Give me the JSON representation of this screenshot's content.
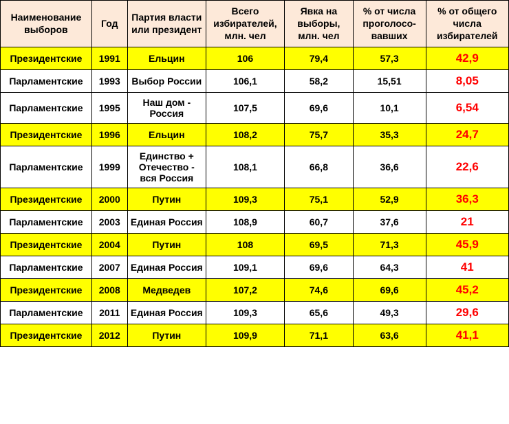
{
  "table": {
    "headers": [
      "Наименование выборов",
      "Год",
      "Партия власти или президент",
      "Всего избирателей, млн. чел",
      "Явка на выборы, млн. чел",
      "% от числа проголосо-вавших",
      "% от общего числа избирателей"
    ],
    "columns": [
      {
        "class": "col-name"
      },
      {
        "class": "col-year"
      },
      {
        "class": "col-party"
      },
      {
        "class": "col-voters"
      },
      {
        "class": "col-turnout"
      },
      {
        "class": "col-pct-voted"
      },
      {
        "class": "col-pct-total"
      }
    ],
    "rows": [
      {
        "highlight": true,
        "cells": [
          "Президентские",
          "1991",
          "Ельцин",
          "106",
          "79,4",
          "57,3",
          "42,9"
        ]
      },
      {
        "highlight": false,
        "cells": [
          "Парламентские",
          "1993",
          "Выбор России",
          "106,1",
          "58,2",
          "15,51",
          "8,05"
        ]
      },
      {
        "highlight": false,
        "cells": [
          "Парламентские",
          "1995",
          "Наш дом - Россия",
          "107,5",
          "69,6",
          "10,1",
          "6,54"
        ]
      },
      {
        "highlight": true,
        "cells": [
          "Президентские",
          "1996",
          "Ельцин",
          "108,2",
          "75,7",
          "35,3",
          "24,7"
        ]
      },
      {
        "highlight": false,
        "cells": [
          "Парламентские",
          "1999",
          "Единство + Отечество - вся Россия",
          "108,1",
          "66,8",
          "36,6",
          "22,6"
        ]
      },
      {
        "highlight": true,
        "cells": [
          "Президентские",
          "2000",
          "Путин",
          "109,3",
          "75,1",
          "52,9",
          "36,3"
        ]
      },
      {
        "highlight": false,
        "cells": [
          "Парламентские",
          "2003",
          "Единая Россия",
          "108,9",
          "60,7",
          "37,6",
          "21"
        ]
      },
      {
        "highlight": true,
        "cells": [
          "Президентские",
          "2004",
          "Путин",
          "108",
          "69,5",
          "71,3",
          "45,9"
        ]
      },
      {
        "highlight": false,
        "cells": [
          "Парламентские",
          "2007",
          "Единая Россия",
          "109,1",
          "69,6",
          "64,3",
          "41"
        ]
      },
      {
        "highlight": true,
        "cells": [
          "Президентские",
          "2008",
          "Медведев",
          "107,2",
          "74,6",
          "69,6",
          "45,2"
        ]
      },
      {
        "highlight": false,
        "cells": [
          "Парламентские",
          "2011",
          "Единая Россия",
          "109,3",
          "65,6",
          "49,3",
          "29,6"
        ]
      },
      {
        "highlight": true,
        "cells": [
          "Президентские",
          "2012",
          "Путин",
          "109,9",
          "71,1",
          "63,6",
          "41,1"
        ]
      }
    ],
    "styles": {
      "header_bg": "#fde9d9",
      "highlight_bg": "#ffff00",
      "normal_bg": "#ffffff",
      "border_color": "#000000",
      "last_col_color": "#ff0000"
    }
  }
}
